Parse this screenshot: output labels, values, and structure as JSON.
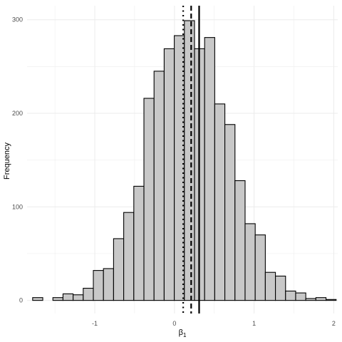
{
  "chart_data": {
    "type": "bar",
    "subtype": "histogram",
    "xlabel": "β",
    "xlabel_subscript": "1",
    "ylabel": "Frequency",
    "xlim": [
      -1.85,
      2.05
    ],
    "ylim": [
      -14,
      315
    ],
    "x_ticks": [
      -1,
      0,
      1,
      2
    ],
    "x_tick_labels": [
      "-1",
      "0",
      "1",
      "2"
    ],
    "y_ticks": [
      0,
      100,
      200,
      300
    ],
    "y_tick_labels": [
      "0",
      "100",
      "200",
      "300"
    ],
    "grid": true,
    "bin_width": 0.127,
    "bins": [
      {
        "x0": -1.78,
        "x1": -1.653,
        "count": 3
      },
      {
        "x0": -1.653,
        "x1": -1.526,
        "count": 0
      },
      {
        "x0": -1.526,
        "x1": -1.399,
        "count": 3
      },
      {
        "x0": -1.399,
        "x1": -1.272,
        "count": 7
      },
      {
        "x0": -1.272,
        "x1": -1.145,
        "count": 6
      },
      {
        "x0": -1.145,
        "x1": -1.018,
        "count": 13
      },
      {
        "x0": -1.018,
        "x1": -0.891,
        "count": 32
      },
      {
        "x0": -0.891,
        "x1": -0.764,
        "count": 34
      },
      {
        "x0": -0.764,
        "x1": -0.637,
        "count": 66
      },
      {
        "x0": -0.637,
        "x1": -0.51,
        "count": 94
      },
      {
        "x0": -0.51,
        "x1": -0.383,
        "count": 122
      },
      {
        "x0": -0.383,
        "x1": -0.256,
        "count": 216
      },
      {
        "x0": -0.256,
        "x1": -0.129,
        "count": 245
      },
      {
        "x0": -0.129,
        "x1": -0.002,
        "count": 269
      },
      {
        "x0": -0.002,
        "x1": 0.125,
        "count": 283
      },
      {
        "x0": 0.125,
        "x1": 0.252,
        "count": 299
      },
      {
        "x0": 0.252,
        "x1": 0.379,
        "count": 269
      },
      {
        "x0": 0.379,
        "x1": 0.506,
        "count": 281
      },
      {
        "x0": 0.506,
        "x1": 0.633,
        "count": 210
      },
      {
        "x0": 0.633,
        "x1": 0.76,
        "count": 188
      },
      {
        "x0": 0.76,
        "x1": 0.887,
        "count": 128
      },
      {
        "x0": 0.887,
        "x1": 1.014,
        "count": 82
      },
      {
        "x0": 1.014,
        "x1": 1.141,
        "count": 70
      },
      {
        "x0": 1.141,
        "x1": 1.268,
        "count": 30
      },
      {
        "x0": 1.268,
        "x1": 1.395,
        "count": 26
      },
      {
        "x0": 1.395,
        "x1": 1.522,
        "count": 10
      },
      {
        "x0": 1.522,
        "x1": 1.649,
        "count": 8
      },
      {
        "x0": 1.649,
        "x1": 1.776,
        "count": 2
      },
      {
        "x0": 1.776,
        "x1": 1.903,
        "count": 3
      },
      {
        "x0": 1.903,
        "x1": 2.03,
        "count": 1
      }
    ],
    "reference_lines": [
      {
        "x": 0.11,
        "style": "dotted"
      },
      {
        "x": 0.21,
        "style": "dashed"
      },
      {
        "x": 0.31,
        "style": "solid"
      }
    ],
    "colors": {
      "bar_fill": "#c8c8c8",
      "bar_stroke": "#000000",
      "grid": "#ebebeb",
      "tick_text": "#4d4d4d",
      "reference_line": "#000000"
    }
  }
}
